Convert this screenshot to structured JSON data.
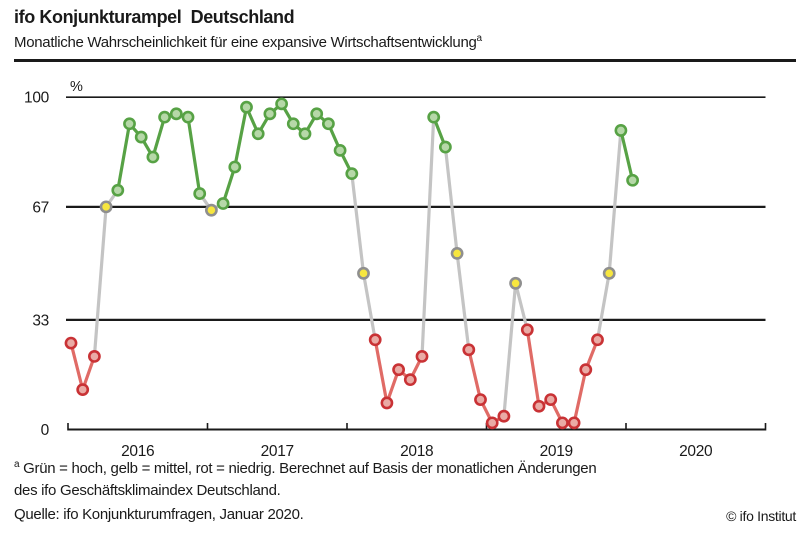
{
  "header": {
    "title": "ifo Konjunkturampel  Deutschland",
    "subtitle": "Monatliche Wahrscheinlichkeit für eine expansive Wirtschaftsentwicklung",
    "subtitle_superscript": "a"
  },
  "chart_data": {
    "type": "line",
    "unit_label": "%",
    "ylim": [
      0,
      100
    ],
    "yticks": [
      0,
      33,
      67,
      100
    ],
    "x_year_labels": [
      "2016",
      "2017",
      "2018",
      "2019",
      "2020"
    ],
    "x_range_months": [
      "2016-01",
      "2020-01"
    ],
    "grid": "horizontal-only",
    "legend_note": "Grün = hoch, gelb = mittel, rot = niedrig",
    "colors": {
      "green_fill": "#b6d8a8",
      "green_stroke": "#57a245",
      "yellow_fill": "#f7e63f",
      "yellow_stroke": "#8f8f8f",
      "red_fill": "#eaaba5",
      "red_stroke": "#c93235",
      "red_line": "#e06b66",
      "connector_gray": "#c4c4c4",
      "axis_black": "#1a1a1a"
    },
    "points": [
      {
        "month": "2016-01",
        "value": 26,
        "level": "red"
      },
      {
        "month": "2016-02",
        "value": 12,
        "level": "red"
      },
      {
        "month": "2016-03",
        "value": 22,
        "level": "red"
      },
      {
        "month": "2016-04",
        "value": 67,
        "level": "yellow"
      },
      {
        "month": "2016-05",
        "value": 72,
        "level": "green"
      },
      {
        "month": "2016-06",
        "value": 92,
        "level": "green"
      },
      {
        "month": "2016-07",
        "value": 88,
        "level": "green"
      },
      {
        "month": "2016-08",
        "value": 82,
        "level": "green"
      },
      {
        "month": "2016-09",
        "value": 94,
        "level": "green"
      },
      {
        "month": "2016-10",
        "value": 95,
        "level": "green"
      },
      {
        "month": "2016-11",
        "value": 94,
        "level": "green"
      },
      {
        "month": "2016-12",
        "value": 71,
        "level": "green"
      },
      {
        "month": "2017-01",
        "value": 66,
        "level": "yellow"
      },
      {
        "month": "2017-02",
        "value": 68,
        "level": "green"
      },
      {
        "month": "2017-03",
        "value": 79,
        "level": "green"
      },
      {
        "month": "2017-04",
        "value": 97,
        "level": "green"
      },
      {
        "month": "2017-05",
        "value": 89,
        "level": "green"
      },
      {
        "month": "2017-06",
        "value": 95,
        "level": "green"
      },
      {
        "month": "2017-07",
        "value": 98,
        "level": "green"
      },
      {
        "month": "2017-08",
        "value": 92,
        "level": "green"
      },
      {
        "month": "2017-09",
        "value": 89,
        "level": "green"
      },
      {
        "month": "2017-10",
        "value": 95,
        "level": "green"
      },
      {
        "month": "2017-11",
        "value": 92,
        "level": "green"
      },
      {
        "month": "2017-12",
        "value": 84,
        "level": "green"
      },
      {
        "month": "2018-01",
        "value": 77,
        "level": "green"
      },
      {
        "month": "2018-02",
        "value": 47,
        "level": "yellow"
      },
      {
        "month": "2018-03",
        "value": 27,
        "level": "red"
      },
      {
        "month": "2018-04",
        "value": 8,
        "level": "red"
      },
      {
        "month": "2018-05",
        "value": 18,
        "level": "red"
      },
      {
        "month": "2018-06",
        "value": 15,
        "level": "red"
      },
      {
        "month": "2018-07",
        "value": 22,
        "level": "red"
      },
      {
        "month": "2018-08",
        "value": 94,
        "level": "green"
      },
      {
        "month": "2018-09",
        "value": 85,
        "level": "green"
      },
      {
        "month": "2018-10",
        "value": 53,
        "level": "yellow"
      },
      {
        "month": "2018-11",
        "value": 24,
        "level": "red"
      },
      {
        "month": "2018-12",
        "value": 9,
        "level": "red"
      },
      {
        "month": "2019-01",
        "value": 2,
        "level": "red"
      },
      {
        "month": "2019-02",
        "value": 4,
        "level": "red"
      },
      {
        "month": "2019-03",
        "value": 44,
        "level": "yellow"
      },
      {
        "month": "2019-04",
        "value": 30,
        "level": "red"
      },
      {
        "month": "2019-05",
        "value": 7,
        "level": "red"
      },
      {
        "month": "2019-06",
        "value": 9,
        "level": "red"
      },
      {
        "month": "2019-07",
        "value": 2,
        "level": "red"
      },
      {
        "month": "2019-08",
        "value": 2,
        "level": "red"
      },
      {
        "month": "2019-09",
        "value": 18,
        "level": "red"
      },
      {
        "month": "2019-10",
        "value": 27,
        "level": "red"
      },
      {
        "month": "2019-11",
        "value": 47,
        "level": "yellow"
      },
      {
        "month": "2019-12",
        "value": 90,
        "level": "green"
      },
      {
        "month": "2020-01",
        "value": 75,
        "level": "green"
      }
    ]
  },
  "footer": {
    "footnote_superscript": "a",
    "footnote_line1": " Grün = hoch, gelb = mittel, rot = niedrig. Berechnet auf Basis der monatlichen Änderungen",
    "footnote_line2": "des ifo Geschäftsklimaindex Deutschland.",
    "source": "Quelle: ifo Konjunkturumfragen, Januar 2020.",
    "copyright": "© ifo Institut"
  }
}
